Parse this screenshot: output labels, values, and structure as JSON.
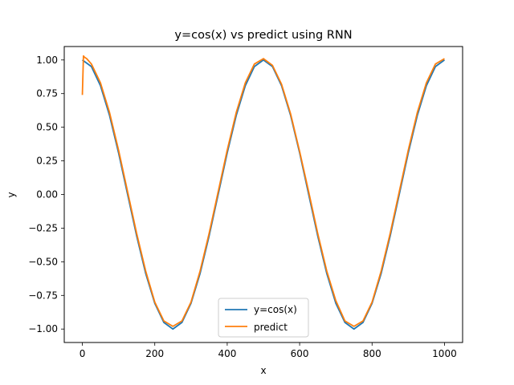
{
  "chart_data": {
    "type": "line",
    "title": "y=cos(x) vs predict using RNN",
    "xlabel": "x",
    "ylabel": "y",
    "xlim": [
      -50,
      1050
    ],
    "ylim": [
      -1.1,
      1.1
    ],
    "xticks": [
      0,
      200,
      400,
      600,
      800,
      1000
    ],
    "yticks": [
      -1.0,
      -0.75,
      -0.5,
      -0.25,
      0.0,
      0.25,
      0.5,
      0.75,
      1.0
    ],
    "xtick_labels": [
      "0",
      "200",
      "400",
      "600",
      "800",
      "1000"
    ],
    "ytick_labels": [
      "−1.00",
      "−0.75",
      "−0.50",
      "−0.25",
      "0.00",
      "0.25",
      "0.50",
      "0.75",
      "1.00"
    ],
    "grid": false,
    "legend_position": "lower-center",
    "series": [
      {
        "name": "y=cos(x)",
        "color": "#1f77b4",
        "x": [
          0,
          25,
          50,
          75,
          100,
          125,
          150,
          175,
          200,
          225,
          250,
          275,
          300,
          325,
          350,
          375,
          400,
          425,
          450,
          475,
          500,
          525,
          550,
          575,
          600,
          625,
          650,
          675,
          700,
          725,
          750,
          775,
          800,
          825,
          850,
          875,
          900,
          925,
          950,
          975,
          1000
        ],
        "y": [
          1.0,
          0.951,
          0.809,
          0.588,
          0.309,
          0.0,
          -0.309,
          -0.588,
          -0.809,
          -0.951,
          -1.0,
          -0.951,
          -0.809,
          -0.588,
          -0.309,
          0.0,
          0.309,
          0.588,
          0.809,
          0.951,
          1.0,
          0.951,
          0.809,
          0.588,
          0.309,
          0.0,
          -0.309,
          -0.588,
          -0.809,
          -0.951,
          -1.0,
          -0.951,
          -0.809,
          -0.588,
          -0.309,
          0.0,
          0.309,
          0.588,
          0.809,
          0.951,
          1.0
        ]
      },
      {
        "name": "predict",
        "color": "#ff7f0e",
        "x": [
          0,
          3,
          6,
          12,
          25,
          50,
          75,
          100,
          125,
          150,
          175,
          200,
          225,
          250,
          275,
          300,
          325,
          350,
          375,
          400,
          425,
          450,
          475,
          500,
          525,
          550,
          575,
          600,
          625,
          650,
          675,
          700,
          725,
          750,
          775,
          800,
          825,
          850,
          875,
          900,
          925,
          950,
          975,
          1000
        ],
        "y": [
          0.74,
          1.03,
          1.02,
          1.01,
          0.97,
          0.83,
          0.61,
          0.33,
          0.02,
          -0.29,
          -0.57,
          -0.8,
          -0.94,
          -0.98,
          -0.94,
          -0.8,
          -0.57,
          -0.29,
          0.02,
          0.33,
          0.61,
          0.83,
          0.97,
          1.01,
          0.96,
          0.82,
          0.6,
          0.32,
          0.02,
          -0.29,
          -0.57,
          -0.79,
          -0.94,
          -0.98,
          -0.94,
          -0.8,
          -0.57,
          -0.29,
          0.02,
          0.33,
          0.61,
          0.83,
          0.97,
          1.01
        ]
      }
    ]
  }
}
